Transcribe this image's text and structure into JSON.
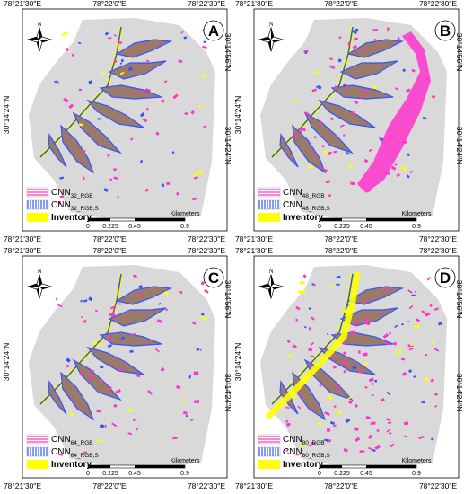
{
  "coords": {
    "top_left": "78°21'30\"E",
    "top_mid": "78°22'0\"E",
    "top_right": "78°22'30\"E",
    "right_top": "30°14'56\"N",
    "right_bottom": "30°14'24\"N",
    "bottom_left": "78°21'30\"E",
    "bottom_mid": "78°22'0\"E",
    "bottom_right": "78°22'30\"E"
  },
  "north_label": "N",
  "scale": {
    "ticks": [
      "0",
      "0.225",
      "0.45",
      "0.9"
    ],
    "unit": "Kilometers"
  },
  "legend_inventory": "Inventory",
  "colors": {
    "background_area": "#d9d9d9",
    "pred_pink": "#ff33cc",
    "pred_blue": "#3355ff",
    "inventory": "#ffff00",
    "overlap_brown": "#9c7a6a"
  },
  "panels": [
    {
      "letter": "A",
      "cnn_a": "CNN",
      "cnn_a_sub": "32_RGB",
      "cnn_b": "CNN",
      "cnn_b_sub": "32_RGB,S"
    },
    {
      "letter": "B",
      "cnn_a": "CNN",
      "cnn_a_sub": "48_RGB",
      "cnn_b": "CNN",
      "cnn_b_sub": "48_RGB,S"
    },
    {
      "letter": "C",
      "cnn_a": "CNN",
      "cnn_a_sub": "64_RGB",
      "cnn_b": "CNN",
      "cnn_b_sub": "64_RGB,S"
    },
    {
      "letter": "D",
      "cnn_a": "CNN",
      "cnn_a_sub": "80_RGB",
      "cnn_b": "CNN",
      "cnn_b_sub": "80_RGB,S"
    }
  ]
}
